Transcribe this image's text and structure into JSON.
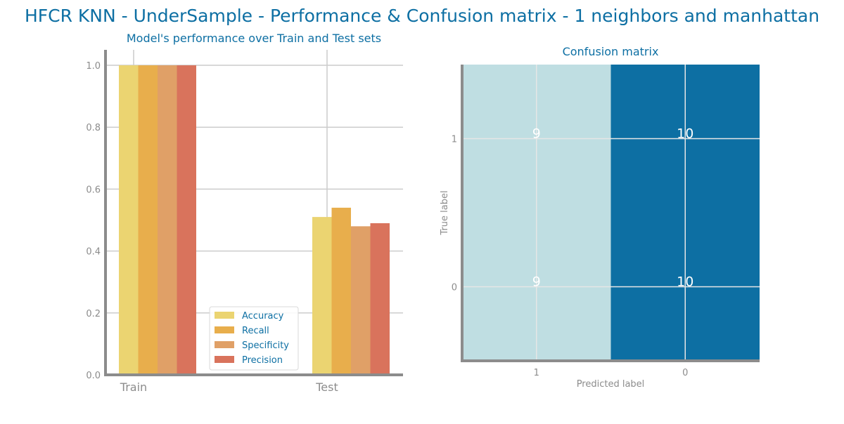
{
  "title": "HFCR KNN - UnderSample - Performance & Confusion matrix - 1 neighbors and manhattan",
  "colors": {
    "title": "#0d6fa3",
    "axis": "#8c8c8c",
    "tick": "#8c8c8c",
    "grid": "#cccccc",
    "series": [
      "#ebd471",
      "#e8ae4c",
      "#e0a067",
      "#d9735c"
    ],
    "cm_low": "#bfdee2",
    "cm_high": "#0d6fa3",
    "cm_text": "#ffffff"
  },
  "chart_data": [
    {
      "type": "bar",
      "title": "Model's performance over Train and Test sets",
      "categories": [
        "Train",
        "Test"
      ],
      "series": [
        {
          "name": "Accuracy",
          "values": [
            1.0,
            0.51
          ]
        },
        {
          "name": "Recall",
          "values": [
            1.0,
            0.54
          ]
        },
        {
          "name": "Specificity",
          "values": [
            1.0,
            0.48
          ]
        },
        {
          "name": "Precision",
          "values": [
            1.0,
            0.49
          ]
        }
      ],
      "ylim": [
        0,
        1.05
      ],
      "yticks": [
        "0.0",
        "0.2",
        "0.4",
        "0.6",
        "0.8",
        "1.0"
      ],
      "grid": true,
      "legend_position": "bottom-center"
    },
    {
      "type": "heatmap",
      "title": "Confusion matrix",
      "xlabel": "Predicted label",
      "ylabel": "True label",
      "x_labels": [
        "1",
        "0"
      ],
      "y_labels": [
        "1",
        "0"
      ],
      "values": [
        [
          9,
          10
        ],
        [
          9,
          10
        ]
      ],
      "grid": true
    }
  ]
}
